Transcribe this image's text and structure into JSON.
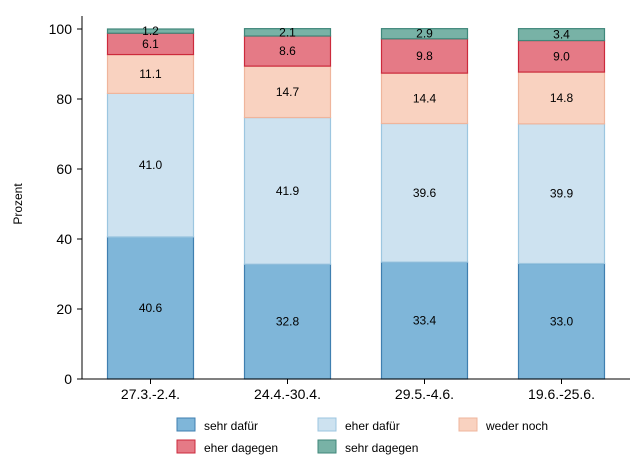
{
  "chart_data": {
    "type": "bar",
    "stacked": true,
    "ylabel": "Prozent",
    "xlabel": "",
    "ylim": [
      0,
      100
    ],
    "yticks": [
      0,
      20,
      40,
      60,
      80,
      100
    ],
    "grid": false,
    "legend_position": "bottom",
    "categories": [
      "27.3.-2.4.",
      "24.4.-30.4.",
      "29.5.-4.6.",
      "19.6.-25.6."
    ],
    "series": [
      {
        "name": "sehr dafür",
        "color": "#7fb6d9",
        "edge": "#3f7fb0",
        "values": [
          40.6,
          32.8,
          33.4,
          33.0
        ]
      },
      {
        "name": "eher dafür",
        "color": "#cde2f0",
        "edge": "#9cc6e0",
        "values": [
          41.0,
          41.9,
          39.6,
          39.9
        ]
      },
      {
        "name": "weder noch",
        "color": "#f9d2c0",
        "edge": "#efb59c",
        "values": [
          11.1,
          14.7,
          14.4,
          14.8
        ]
      },
      {
        "name": "eher dagegen",
        "color": "#e57a86",
        "edge": "#cc2a3c",
        "values": [
          6.1,
          8.6,
          9.8,
          9.0
        ]
      },
      {
        "name": "sehr dagegen",
        "color": "#78b2a6",
        "edge": "#3f877a",
        "values": [
          1.2,
          2.1,
          2.9,
          3.4
        ]
      }
    ]
  }
}
